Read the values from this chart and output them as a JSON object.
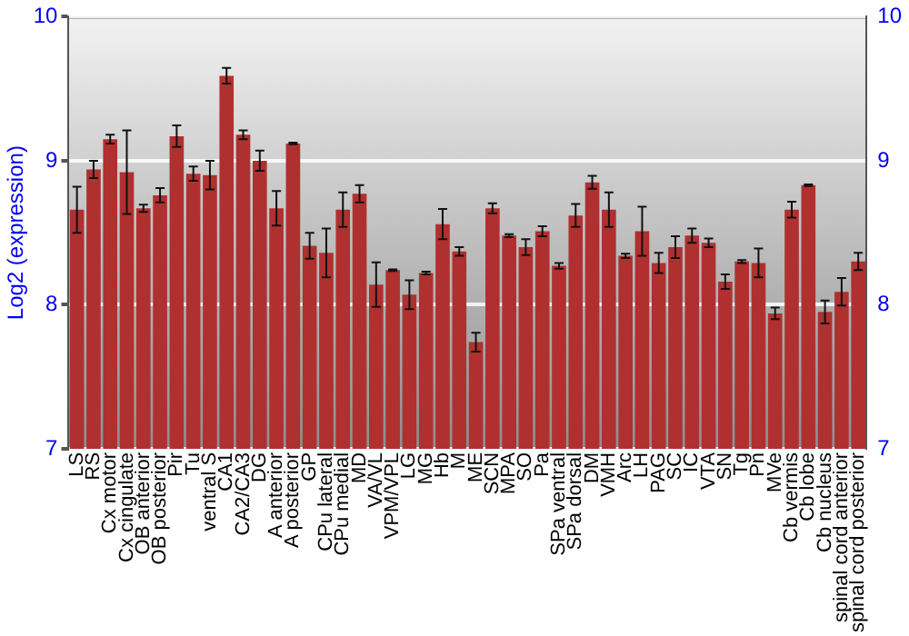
{
  "chart_data": {
    "type": "bar",
    "ylabel": "Log2 (expression)",
    "categories": [
      "LS",
      "RS",
      "Cx motor",
      "Cx cingulate",
      "OB anterior",
      "OB posterior",
      "Pir",
      "Tu",
      "ventral S",
      "CA1",
      "CA2/CA3",
      "DG",
      "A anterior",
      "A posterior",
      "GP",
      "CPu lateral",
      "CPu medial",
      "MD",
      "VA/VL",
      "VPM/VPL",
      "LG",
      "MG",
      "Hb",
      "M",
      "ME",
      "SCN",
      "MPA",
      "SO",
      "Pa",
      "SPa ventral",
      "SPa dorsal",
      "DM",
      "VMH",
      "Arc",
      "LH",
      "PAG",
      "SC",
      "IC",
      "VTA",
      "SN",
      "Tg",
      "Pn",
      "MVe",
      "Cb vermis",
      "Cb lobe",
      "Cb nucleus",
      "spinal cord anterior",
      "spinal cord posterior"
    ],
    "values": [
      8.66,
      8.94,
      9.15,
      8.92,
      8.67,
      8.76,
      9.17,
      8.91,
      8.9,
      9.59,
      9.18,
      9.0,
      8.67,
      9.12,
      8.41,
      8.36,
      8.66,
      8.77,
      8.14,
      8.24,
      8.07,
      8.22,
      8.56,
      8.37,
      7.74,
      8.67,
      8.48,
      8.4,
      8.51,
      8.27,
      8.62,
      8.85,
      8.66,
      8.34,
      8.51,
      8.29,
      8.4,
      8.48,
      8.43,
      8.16,
      8.3,
      8.29,
      7.94,
      8.66,
      8.83,
      7.95,
      8.09,
      8.3
    ],
    "errors": [
      0.16,
      0.06,
      0.03,
      0.29,
      0.025,
      0.05,
      0.075,
      0.05,
      0.1,
      0.055,
      0.03,
      0.07,
      0.12,
      0.005,
      0.09,
      0.17,
      0.12,
      0.06,
      0.155,
      0.005,
      0.1,
      0.01,
      0.105,
      0.03,
      0.065,
      0.035,
      0.01,
      0.055,
      0.035,
      0.02,
      0.08,
      0.045,
      0.12,
      0.015,
      0.17,
      0.07,
      0.075,
      0.05,
      0.03,
      0.05,
      0.01,
      0.1,
      0.04,
      0.055,
      0.005,
      0.08,
      0.095,
      0.06
    ],
    "color": "#b03030",
    "ylim": [
      7,
      10
    ],
    "yticks": [
      7,
      8,
      9,
      10
    ],
    "y2lim": [
      7,
      10
    ],
    "y2ticks": [
      7,
      8,
      9,
      10
    ],
    "grid": "y",
    "legend": false
  }
}
